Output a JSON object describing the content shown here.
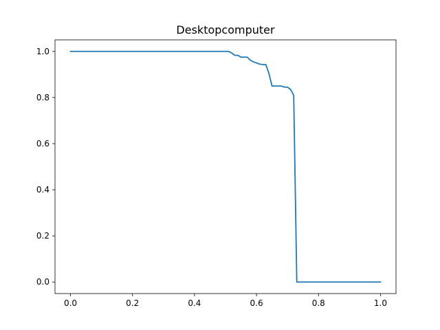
{
  "chart_data": {
    "type": "line",
    "title": "Desktopcomputer",
    "xlabel": "",
    "ylabel": "",
    "xlim": [
      -0.05,
      1.05
    ],
    "ylim": [
      -0.05,
      1.05
    ],
    "grid": false,
    "x_ticks": [
      0.0,
      0.2,
      0.4,
      0.6,
      0.8,
      1.0
    ],
    "x_tick_labels": [
      "0.0",
      "0.2",
      "0.4",
      "0.6",
      "0.8",
      "1.0"
    ],
    "y_ticks": [
      0.0,
      0.2,
      0.4,
      0.6,
      0.8,
      1.0
    ],
    "y_tick_labels": [
      "0.0",
      "0.2",
      "0.4",
      "0.6",
      "0.8",
      "1.0"
    ],
    "series": [
      {
        "color": "#1f77b4",
        "x": [
          0.0,
          0.05,
          0.1,
          0.15,
          0.2,
          0.25,
          0.3,
          0.35,
          0.4,
          0.45,
          0.5,
          0.51,
          0.52,
          0.53,
          0.54,
          0.55,
          0.56,
          0.57,
          0.58,
          0.59,
          0.6,
          0.61,
          0.62,
          0.63,
          0.64,
          0.65,
          0.66,
          0.67,
          0.68,
          0.69,
          0.7,
          0.71,
          0.72,
          0.73,
          0.74,
          0.75,
          0.8,
          0.85,
          0.9,
          0.95,
          1.0
        ],
        "y": [
          1.0,
          1.0,
          1.0,
          1.0,
          1.0,
          1.0,
          1.0,
          1.0,
          1.0,
          1.0,
          1.0,
          1.0,
          0.993,
          0.983,
          0.983,
          0.975,
          0.975,
          0.975,
          0.962,
          0.955,
          0.95,
          0.945,
          0.943,
          0.943,
          0.905,
          0.85,
          0.85,
          0.85,
          0.85,
          0.845,
          0.845,
          0.835,
          0.81,
          0.0,
          0.0,
          0.0,
          0.0,
          0.0,
          0.0,
          0.0,
          0.0
        ]
      }
    ]
  }
}
